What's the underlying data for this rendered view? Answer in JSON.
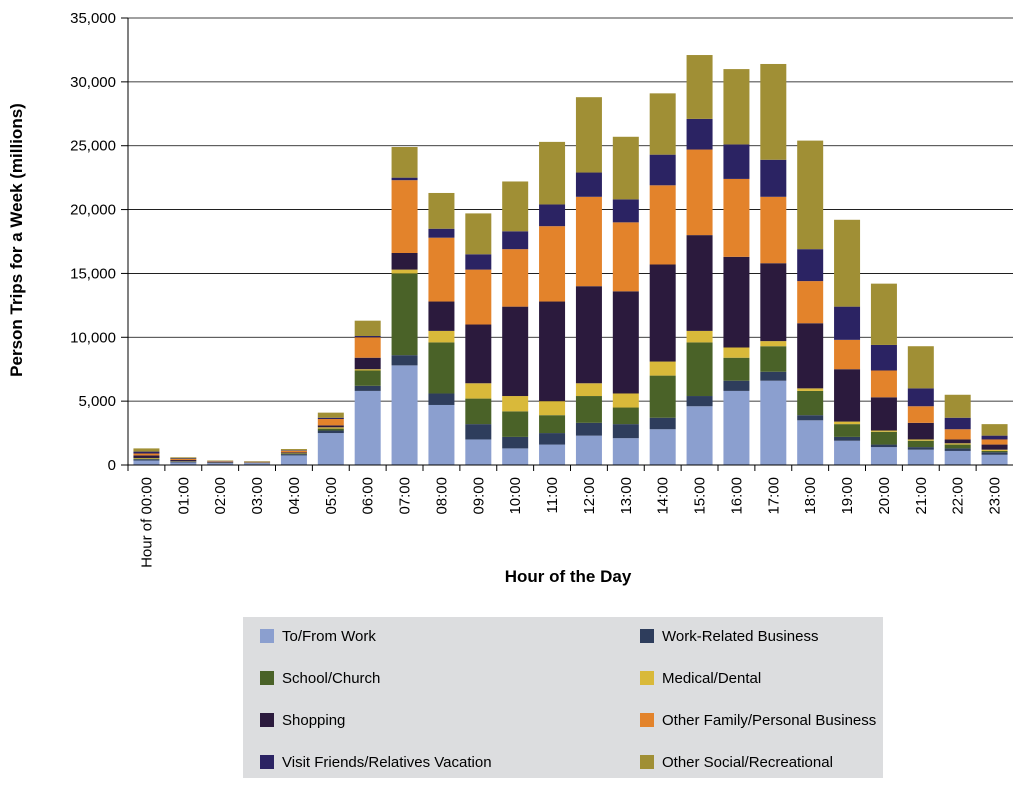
{
  "chart_data": {
    "type": "stacked_bar",
    "y_label": "Person Trips for a Week (millions)",
    "x_label": "Hour of the Day",
    "categories": [
      "Hour of 00:00",
      "01:00",
      "02:00",
      "03:00",
      "04:00",
      "05:00",
      "06:00",
      "07:00",
      "08:00",
      "09:00",
      "10:00",
      "11:00",
      "12:00",
      "13:00",
      "14:00",
      "15:00",
      "16:00",
      "17:00",
      "18:00",
      "19:00",
      "20:00",
      "21:00",
      "22:00",
      "23:00"
    ],
    "series": [
      {
        "name": "To/From Work",
        "color": "#8b9fcf",
        "values": [
          350,
          200,
          150,
          150,
          750,
          2500,
          5800,
          7800,
          4700,
          2000,
          1300,
          1600,
          2300,
          2100,
          2800,
          4600,
          5800,
          6600,
          3500,
          1900,
          1400,
          1200,
          1100,
          800
        ]
      },
      {
        "name": "Work-Related Business",
        "color": "#2e3d5c",
        "values": [
          100,
          50,
          30,
          20,
          100,
          200,
          400,
          800,
          900,
          1200,
          900,
          900,
          1000,
          1100,
          900,
          800,
          800,
          700,
          400,
          300,
          200,
          200,
          200,
          200
        ]
      },
      {
        "name": "School/Church",
        "color": "#4a6228",
        "values": [
          50,
          20,
          10,
          10,
          50,
          150,
          1200,
          6400,
          4000,
          2000,
          2000,
          1400,
          2100,
          1300,
          3300,
          4200,
          1800,
          2000,
          1900,
          1000,
          1000,
          500,
          300,
          100
        ]
      },
      {
        "name": "Medical/Dental",
        "color": "#d9b93a",
        "values": [
          50,
          20,
          10,
          10,
          30,
          100,
          100,
          300,
          900,
          1200,
          1200,
          1100,
          1000,
          1100,
          1100,
          900,
          800,
          400,
          200,
          200,
          100,
          100,
          100,
          100
        ]
      },
      {
        "name": "Shopping",
        "color": "#2b1a3d",
        "values": [
          200,
          100,
          50,
          30,
          60,
          150,
          900,
          1300,
          2300,
          4600,
          7000,
          7800,
          7600,
          8000,
          7600,
          7500,
          7100,
          6100,
          5100,
          4100,
          2600,
          1300,
          300,
          400
        ]
      },
      {
        "name": "Other Family/Personal Business",
        "color": "#e3832b",
        "values": [
          150,
          80,
          40,
          30,
          120,
          500,
          1600,
          5700,
          5000,
          4300,
          4500,
          5900,
          7000,
          5400,
          6200,
          6700,
          6100,
          5200,
          3300,
          2300,
          2100,
          1300,
          800,
          400
        ]
      },
      {
        "name": "Visit Friends/Relatives Vacation",
        "color": "#2b2363",
        "values": [
          150,
          50,
          20,
          10,
          40,
          100,
          100,
          200,
          700,
          1200,
          1400,
          1700,
          1900,
          1800,
          2400,
          2400,
          2700,
          2900,
          2500,
          2600,
          2000,
          1400,
          900,
          300
        ]
      },
      {
        "name": "Other Social/Recreational",
        "color": "#a08f35",
        "values": [
          250,
          80,
          40,
          40,
          100,
          400,
          1200,
          2400,
          2800,
          3200,
          3900,
          4900,
          5900,
          4900,
          4800,
          5000,
          5900,
          7500,
          8500,
          6800,
          4800,
          3300,
          1800,
          900
        ]
      }
    ],
    "ylim": [
      0,
      35000
    ],
    "yticks": [
      0,
      {
        "value": 5000,
        "label": "5,000"
      },
      {
        "value": 10000,
        "label": "10,000"
      },
      {
        "value": 15000,
        "label": "15,000"
      },
      {
        "value": 20000,
        "label": "20,000"
      },
      {
        "value": 25000,
        "label": "25,000"
      },
      {
        "value": 30000,
        "label": "30,000"
      },
      {
        "value": 35000,
        "label": "35,000"
      }
    ],
    "grid": true
  }
}
